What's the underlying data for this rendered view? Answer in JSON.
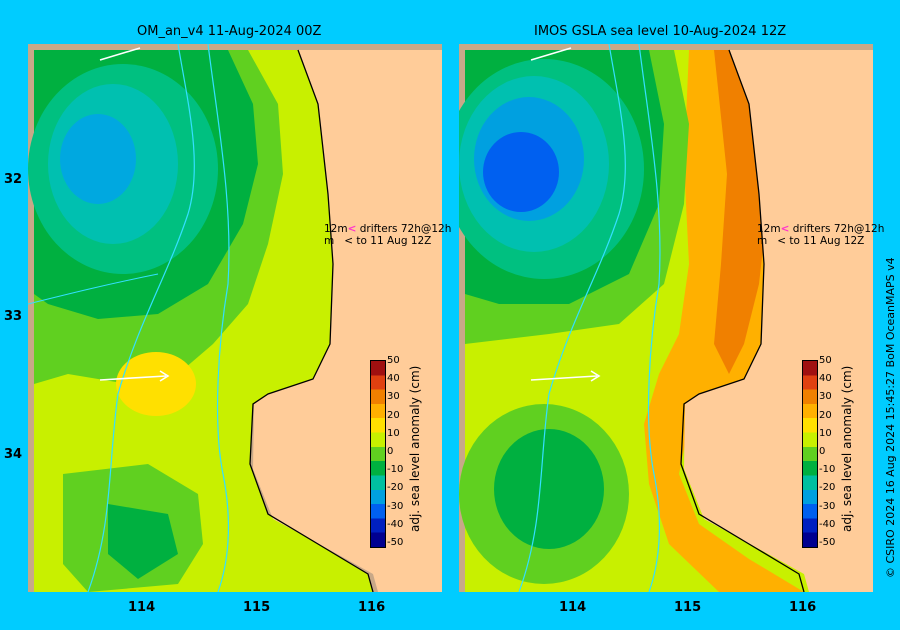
{
  "panels": [
    {
      "title": "OM_an_v4  11-Aug-2024 00Z"
    },
    {
      "title": "IMOS GSLA sea level  10-Aug-2024 12Z"
    }
  ],
  "map": {
    "y_ticks": [
      "32",
      "33",
      "34"
    ],
    "x_ticks": [
      "114",
      "115",
      "116"
    ]
  },
  "colorbar": {
    "title": "adj. sea level anomaly (cm)",
    "ticks": [
      "50",
      "40",
      "30",
      "20",
      "10",
      "0",
      "-10",
      "-20",
      "-30",
      "-40",
      "-50"
    ],
    "colors": [
      "#a01010",
      "#e04010",
      "#f08000",
      "#ffb000",
      "#ffe000",
      "#c8f000",
      "#60d020",
      "#00b040",
      "#00c0a0",
      "#00a0e0",
      "#0060f0",
      "#0020c0",
      "#000090"
    ]
  },
  "legend_note": {
    "line1_a": "12m",
    "line1_arrow": "<",
    "line1_b": "drifters 72h@12h",
    "line2_a": "m",
    "line2_arrow": "<",
    "line2_b": "to 11 Aug 12Z"
  },
  "credit": "© CSIRO 2024   16 Aug 2024 15:45:27 BoM OceanMAPS v4"
}
